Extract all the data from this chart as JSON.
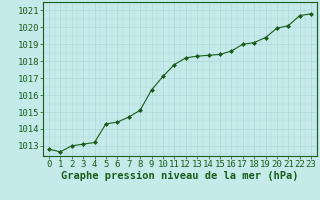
{
  "x": [
    0,
    1,
    2,
    3,
    4,
    5,
    6,
    7,
    8,
    9,
    10,
    11,
    12,
    13,
    14,
    15,
    16,
    17,
    18,
    19,
    20,
    21,
    22,
    23
  ],
  "y": [
    1012.8,
    1012.65,
    1013.0,
    1013.1,
    1013.2,
    1014.3,
    1014.4,
    1014.7,
    1015.1,
    1016.3,
    1017.1,
    1017.8,
    1018.2,
    1018.3,
    1018.35,
    1018.4,
    1018.6,
    1019.0,
    1019.1,
    1019.4,
    1019.95,
    1020.1,
    1020.7,
    1020.8
  ],
  "line_color": "#1a5c1a",
  "marker_color": "#1a5c1a",
  "bg_color": "#c5eaea",
  "grid_major_color": "#b0d8d8",
  "grid_minor_color": "#c5eaea",
  "xlabel": "Graphe pression niveau de la mer (hPa)",
  "xlabel_color": "#1a5c1a",
  "ylabel_ticks": [
    1013,
    1014,
    1015,
    1016,
    1017,
    1018,
    1019,
    1020,
    1021
  ],
  "ylim": [
    1012.4,
    1021.5
  ],
  "xlim": [
    -0.5,
    23.5
  ],
  "tick_label_color": "#1a5c1a",
  "font_size_axis": 6.5,
  "font_size_xlabel": 7.5
}
